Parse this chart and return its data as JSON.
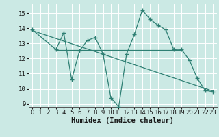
{
  "x_data": [
    0,
    3,
    4,
    5,
    6,
    7,
    8,
    9,
    10,
    11,
    12,
    13,
    14,
    15,
    16,
    17,
    18,
    19,
    20,
    21,
    22,
    23
  ],
  "y_data": [
    13.9,
    12.6,
    13.7,
    10.6,
    12.5,
    13.2,
    13.4,
    12.3,
    9.4,
    8.8,
    12.3,
    13.6,
    15.2,
    14.6,
    14.2,
    13.9,
    12.6,
    12.6,
    11.9,
    10.7,
    9.9,
    9.8
  ],
  "line_color": "#2E7F73",
  "bg_color": "#CBE9E4",
  "grid_color": "#FFFFFF",
  "xlabel": "Humidex (Indice chaleur)",
  "xlim": [
    -0.5,
    23.5
  ],
  "ylim": [
    8.8,
    15.6
  ],
  "yticks": [
    9,
    10,
    11,
    12,
    13,
    14,
    15
  ],
  "xticks": [
    0,
    1,
    2,
    3,
    4,
    5,
    6,
    7,
    8,
    9,
    10,
    11,
    12,
    13,
    14,
    15,
    16,
    17,
    18,
    19,
    20,
    21,
    22,
    23
  ],
  "tick_fontsize": 6.5,
  "xlabel_fontsize": 7.5,
  "trend_x": [
    0,
    23
  ],
  "trend_y": [
    13.85,
    9.85
  ],
  "hline_y": 12.55,
  "hline_xmin": 3,
  "hline_xmax": 19
}
